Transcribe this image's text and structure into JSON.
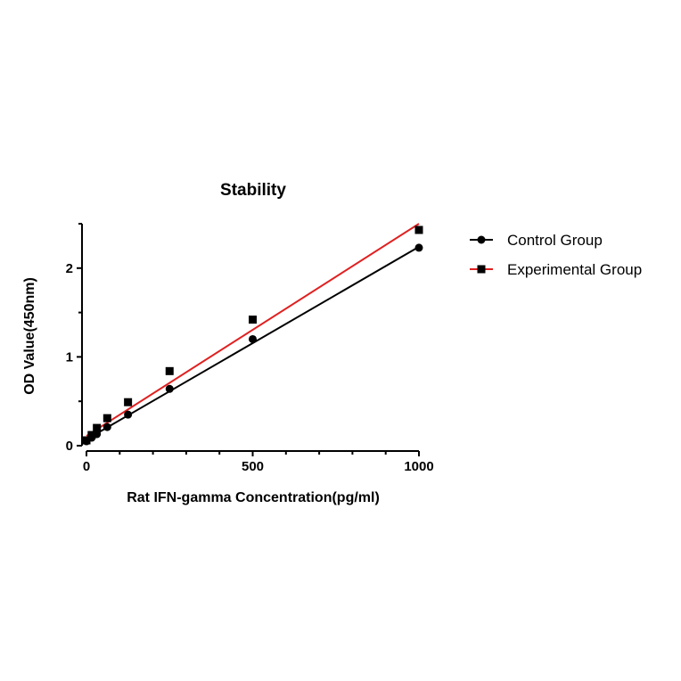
{
  "chart_data": {
    "type": "scatter",
    "title": "Stability",
    "xlabel": "Rat IFN-gamma Concentration(pg/ml)",
    "ylabel": "OD Value(450nm)",
    "xlim": [
      0,
      1000
    ],
    "ylim": [
      0,
      2.5
    ],
    "xticks": [
      0,
      500,
      1000
    ],
    "yticks": [
      0,
      1,
      2
    ],
    "grid": false,
    "legend_position": "right",
    "series": [
      {
        "name": "Control Group",
        "marker": "circle",
        "color": "#000000",
        "line_color": "#000000",
        "x": [
          0,
          15.6,
          31.3,
          62.5,
          125,
          250,
          500,
          1000
        ],
        "y": [
          0.05,
          0.09,
          0.13,
          0.21,
          0.35,
          0.64,
          1.2,
          2.23
        ],
        "fit": {
          "intercept": 0.07,
          "slope": 0.00217
        }
      },
      {
        "name": "Experimental Group",
        "marker": "square",
        "color": "#000000",
        "line_color": "#e02020",
        "x": [
          0,
          15.6,
          31.3,
          62.5,
          125,
          250,
          500,
          1000
        ],
        "y": [
          0.06,
          0.12,
          0.2,
          0.31,
          0.49,
          0.84,
          1.42,
          2.43
        ],
        "fit": {
          "intercept": 0.11,
          "slope": 0.00239
        }
      }
    ]
  }
}
